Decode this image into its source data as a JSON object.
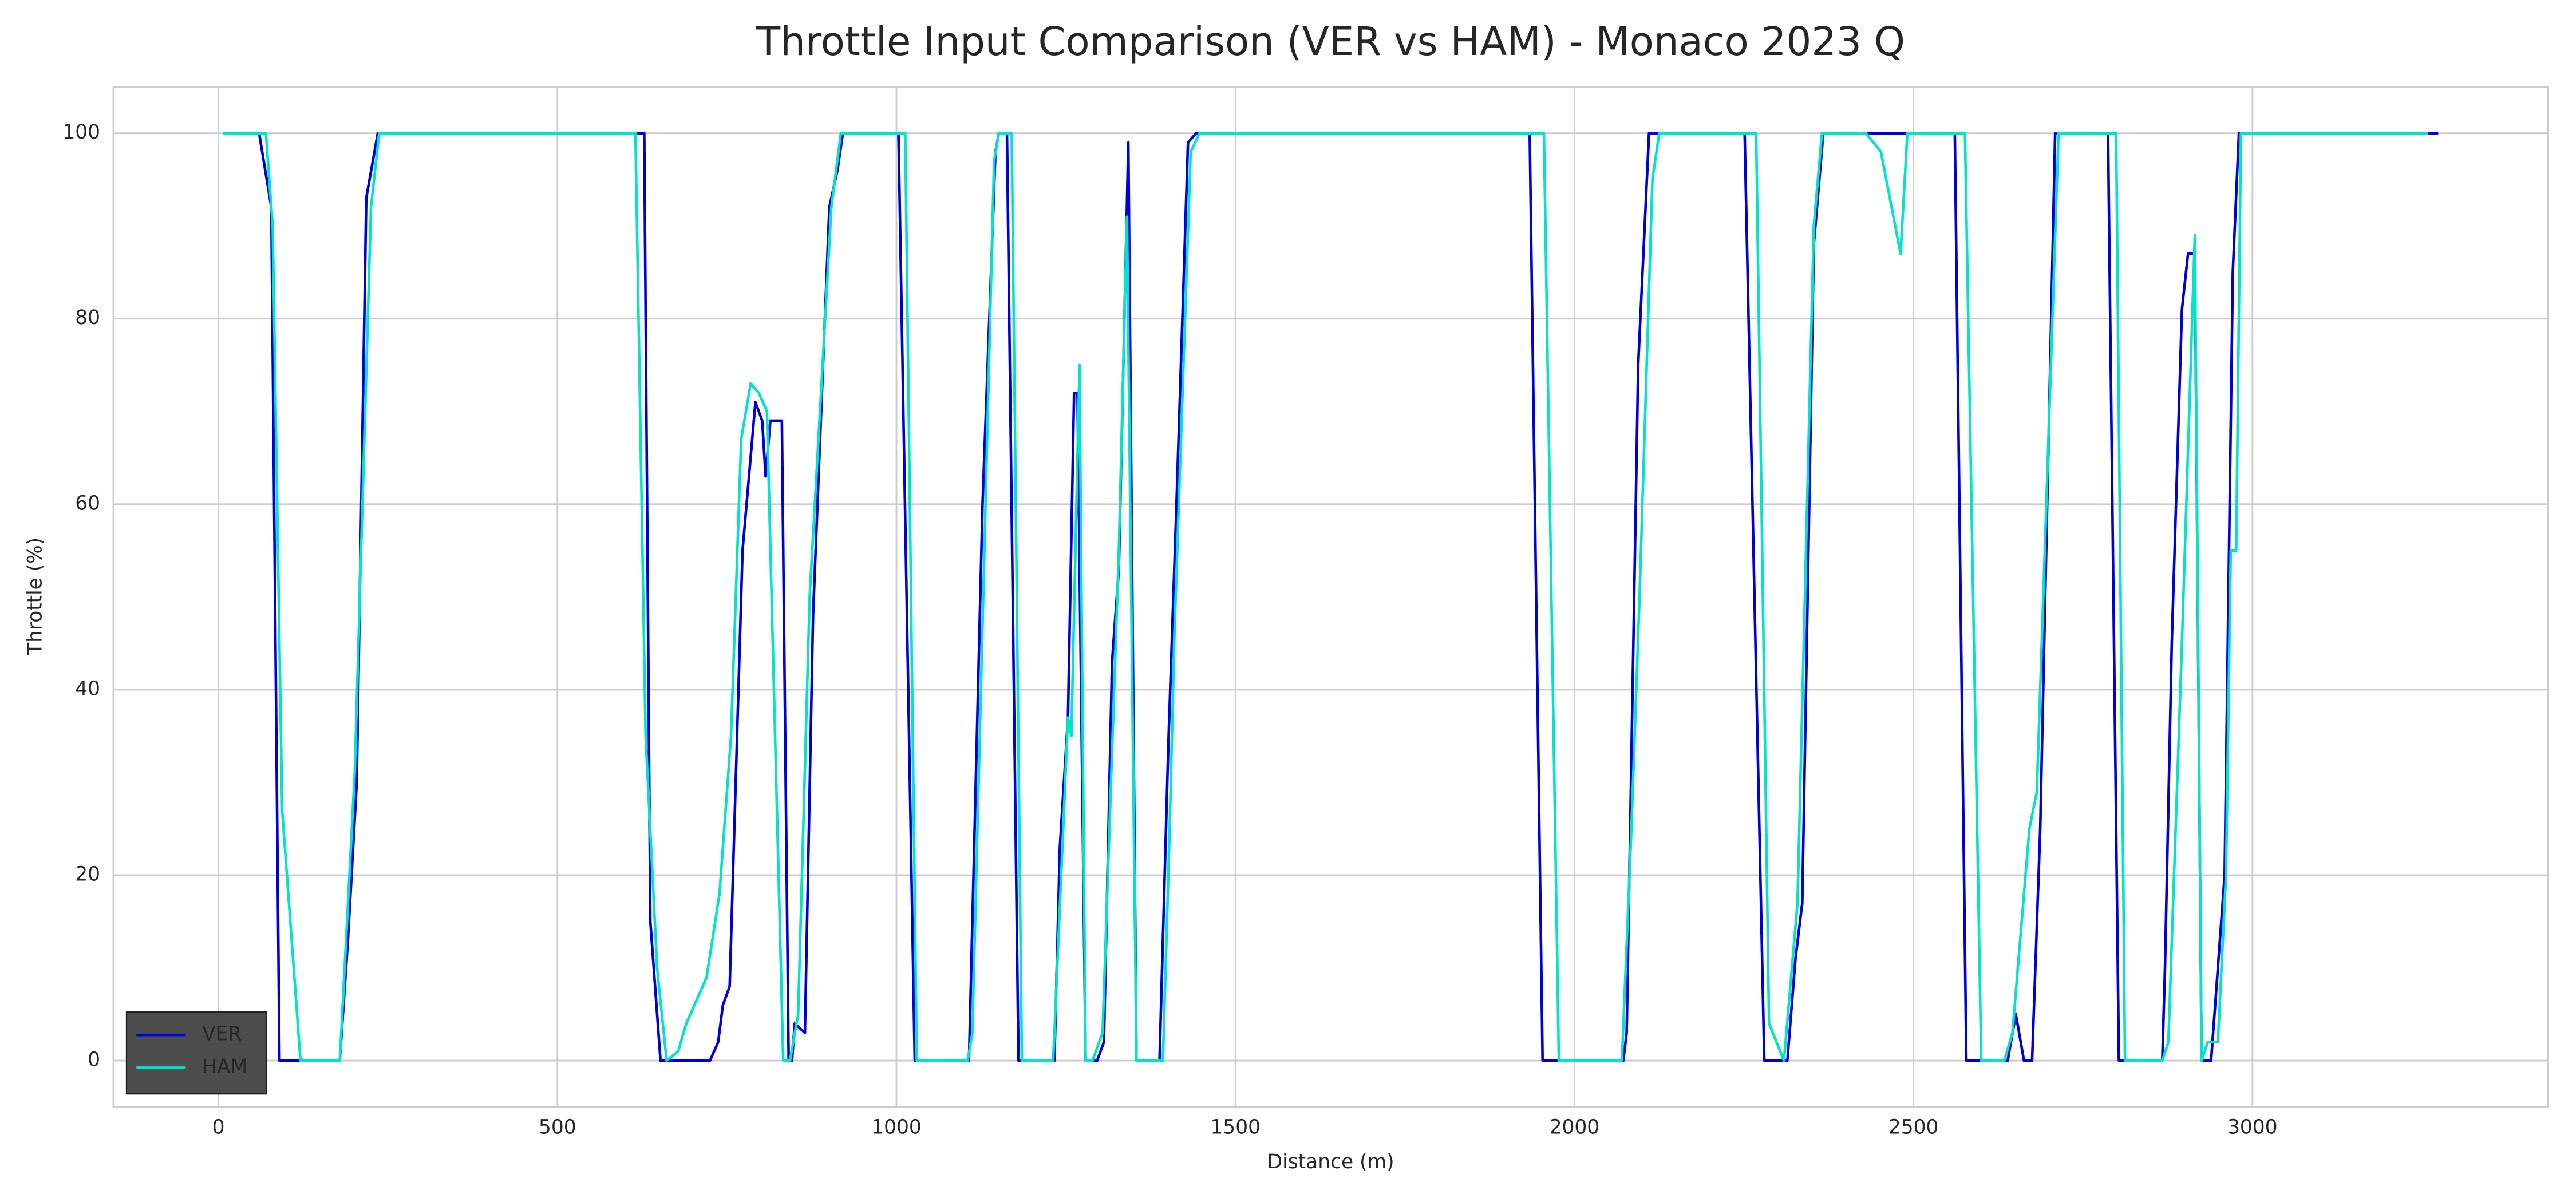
{
  "chart_data": {
    "type": "line",
    "title": "Throttle Input Comparison (VER vs HAM) - Monaco 2023 Q",
    "x_label": "Distance (m)",
    "y_label": "Throttle (%)",
    "xlim": [
      -155,
      3436
    ],
    "ylim": [
      -5,
      105
    ],
    "xticks": [
      0,
      500,
      1000,
      1500,
      2000,
      2500,
      3000
    ],
    "yticks": [
      0,
      20,
      40,
      60,
      80,
      100
    ],
    "grid": true,
    "legend": "lower left",
    "series": [
      {
        "name": "VER",
        "color": "#0000dd",
        "x": [
          7,
          60,
          78,
          90,
          179,
          191,
          204,
          218,
          235,
          628,
          637,
          652,
          725,
          737,
          744,
          754,
          773,
          792,
          802,
          807,
          814,
          831,
          841,
          846,
          850,
          865,
          877,
          889,
          901,
          913,
          921,
          1003,
          1027,
          1107,
          1127,
          1146,
          1151,
          1163,
          1180,
          1233,
          1241,
          1253,
          1262,
          1267,
          1279,
          1296,
          1306,
          1318,
          1328,
          1342,
          1354,
          1388,
          1401,
          1413,
          1430,
          1442,
          1934,
          1953,
          2072,
          2077,
          2094,
          2110,
          2251,
          2280,
          2314,
          2326,
          2336,
          2353,
          2367,
          2561,
          2578,
          2639,
          2651,
          2663,
          2675,
          2687,
          2709,
          2787,
          2803,
          2867,
          2871,
          2881,
          2896,
          2905,
          2915,
          2925,
          2939,
          2949,
          2959,
          2971,
          2980,
          3274
        ],
        "values": [
          100,
          100,
          92,
          0,
          0,
          13,
          30,
          93,
          100,
          100,
          15,
          0,
          0,
          2,
          6,
          8,
          55,
          71,
          69,
          63,
          69,
          69,
          0,
          0,
          4,
          3,
          48,
          70,
          92,
          96,
          100,
          100,
          0,
          0,
          60,
          98,
          100,
          100,
          0,
          0,
          23,
          37,
          72,
          72,
          0,
          0,
          2,
          43,
          53,
          99,
          0,
          0,
          34,
          60,
          99,
          100,
          100,
          0,
          0,
          3,
          75,
          100,
          100,
          0,
          0,
          11,
          17,
          88,
          100,
          100,
          0,
          0,
          5,
          0,
          0,
          25,
          100,
          100,
          0,
          0,
          10,
          45,
          81,
          87,
          87,
          0,
          0,
          10,
          20,
          85,
          100,
          100
        ]
      },
      {
        "name": "HAM",
        "color": "#00e5c8",
        "x": [
          7,
          70,
          80,
          94,
          121,
          179,
          201,
          225,
          237,
          615,
          630,
          647,
          661,
          678,
          690,
          720,
          739,
          756,
          771,
          785,
          797,
          809,
          833,
          843,
          855,
          872,
          904,
          918,
          1013,
          1030,
          1105,
          1112,
          1144,
          1151,
          1170,
          1185,
          1231,
          1233,
          1253,
          1258,
          1270,
          1279,
          1289,
          1304,
          1328,
          1340,
          1354,
          1393,
          1403,
          1410,
          1434,
          1447,
          1955,
          1977,
          2070,
          2084,
          2096,
          2115,
          2125,
          2268,
          2287,
          2309,
          2329,
          2353,
          2365,
          2430,
          2452,
          2481,
          2491,
          2576,
          2600,
          2634,
          2646,
          2671,
          2682,
          2714,
          2799,
          2812,
          2867,
          2876,
          2896,
          2915,
          2925,
          2934,
          2949,
          2961,
          2968,
          2976,
          2983,
          3259
        ],
        "values": [
          100,
          100,
          90,
          27,
          0,
          0,
          31,
          92,
          100,
          100,
          35,
          10,
          0,
          1,
          4,
          9,
          18,
          35,
          67,
          73,
          72,
          70,
          0,
          0,
          5,
          50,
          92,
          100,
          100,
          0,
          0,
          3,
          97,
          100,
          100,
          0,
          0,
          3,
          37,
          35,
          75,
          0,
          0,
          3,
          55,
          91,
          0,
          0,
          25,
          46,
          98,
          100,
          100,
          0,
          0,
          25,
          50,
          95,
          100,
          100,
          4,
          0,
          17,
          90,
          100,
          100,
          98,
          87,
          100,
          100,
          0,
          0,
          3,
          25,
          29,
          100,
          100,
          0,
          0,
          2,
          45,
          89,
          0,
          2,
          2,
          20,
          55,
          55,
          100,
          100
        ]
      }
    ]
  }
}
